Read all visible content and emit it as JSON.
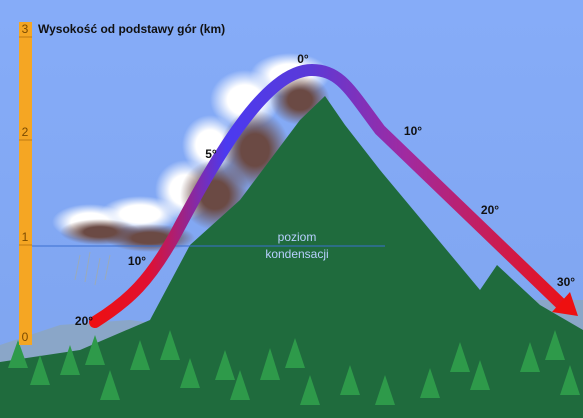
{
  "title": "Wysokość od podstawy gór (km)",
  "scale_labels": [
    "3",
    "2",
    "1",
    "0"
  ],
  "condensation_label": [
    "poziom",
    "kondensacji"
  ],
  "temperatures": [
    "0°",
    "5°",
    "10°",
    "20°",
    "10°",
    "20°",
    "30°"
  ]
}
